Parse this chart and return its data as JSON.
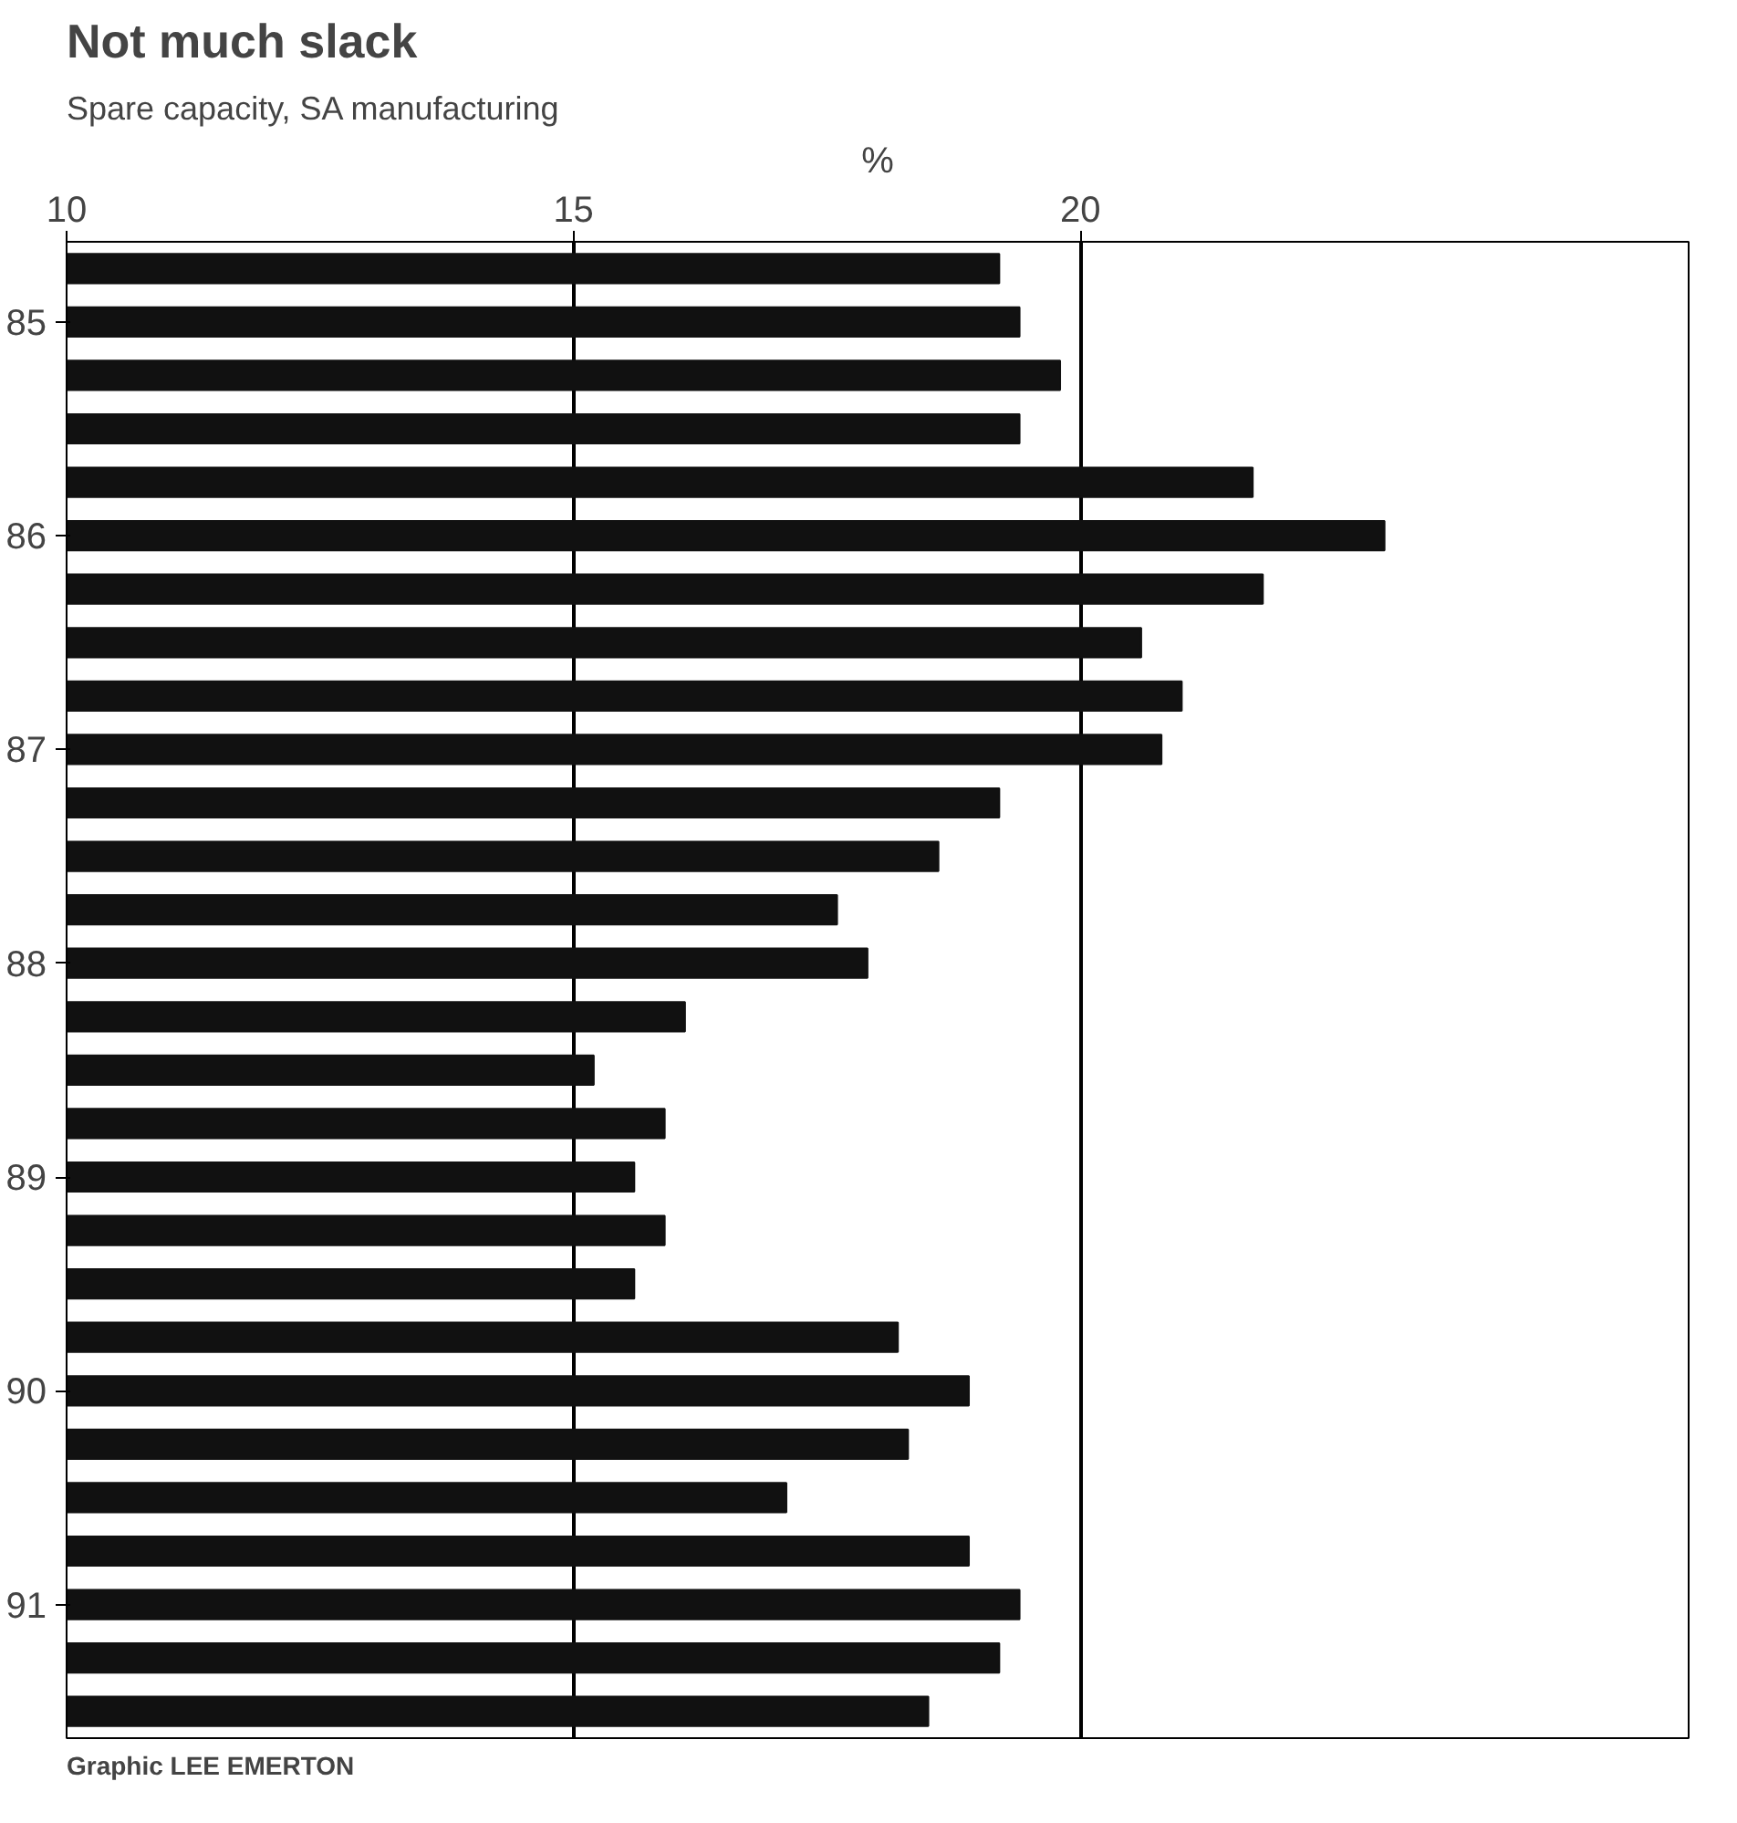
{
  "chart_data": {
    "type": "bar",
    "orientation": "horizontal",
    "title": "Not much slack",
    "subtitle": "Spare capacity, SA manufacturing",
    "xlabel": "%",
    "categories": [
      null,
      "85",
      null,
      null,
      null,
      "86",
      null,
      null,
      null,
      "87",
      null,
      null,
      null,
      "88",
      null,
      null,
      null,
      "89",
      null,
      null,
      null,
      "90",
      null,
      null,
      null,
      "91",
      null,
      null
    ],
    "values": [
      19.2,
      19.4,
      19.8,
      19.4,
      21.7,
      23.0,
      21.8,
      20.6,
      21.0,
      20.8,
      19.2,
      18.6,
      17.6,
      17.9,
      16.1,
      15.2,
      15.9,
      15.6,
      15.9,
      15.6,
      18.2,
      18.9,
      18.3,
      17.1,
      18.9,
      19.4,
      19.2,
      18.5
    ],
    "color": "#111111",
    "xlim": [
      10,
      26
    ],
    "xticks": [
      10,
      15,
      20
    ],
    "grid": "x",
    "annotations": [
      "Graphic LEE EMERTON"
    ]
  }
}
